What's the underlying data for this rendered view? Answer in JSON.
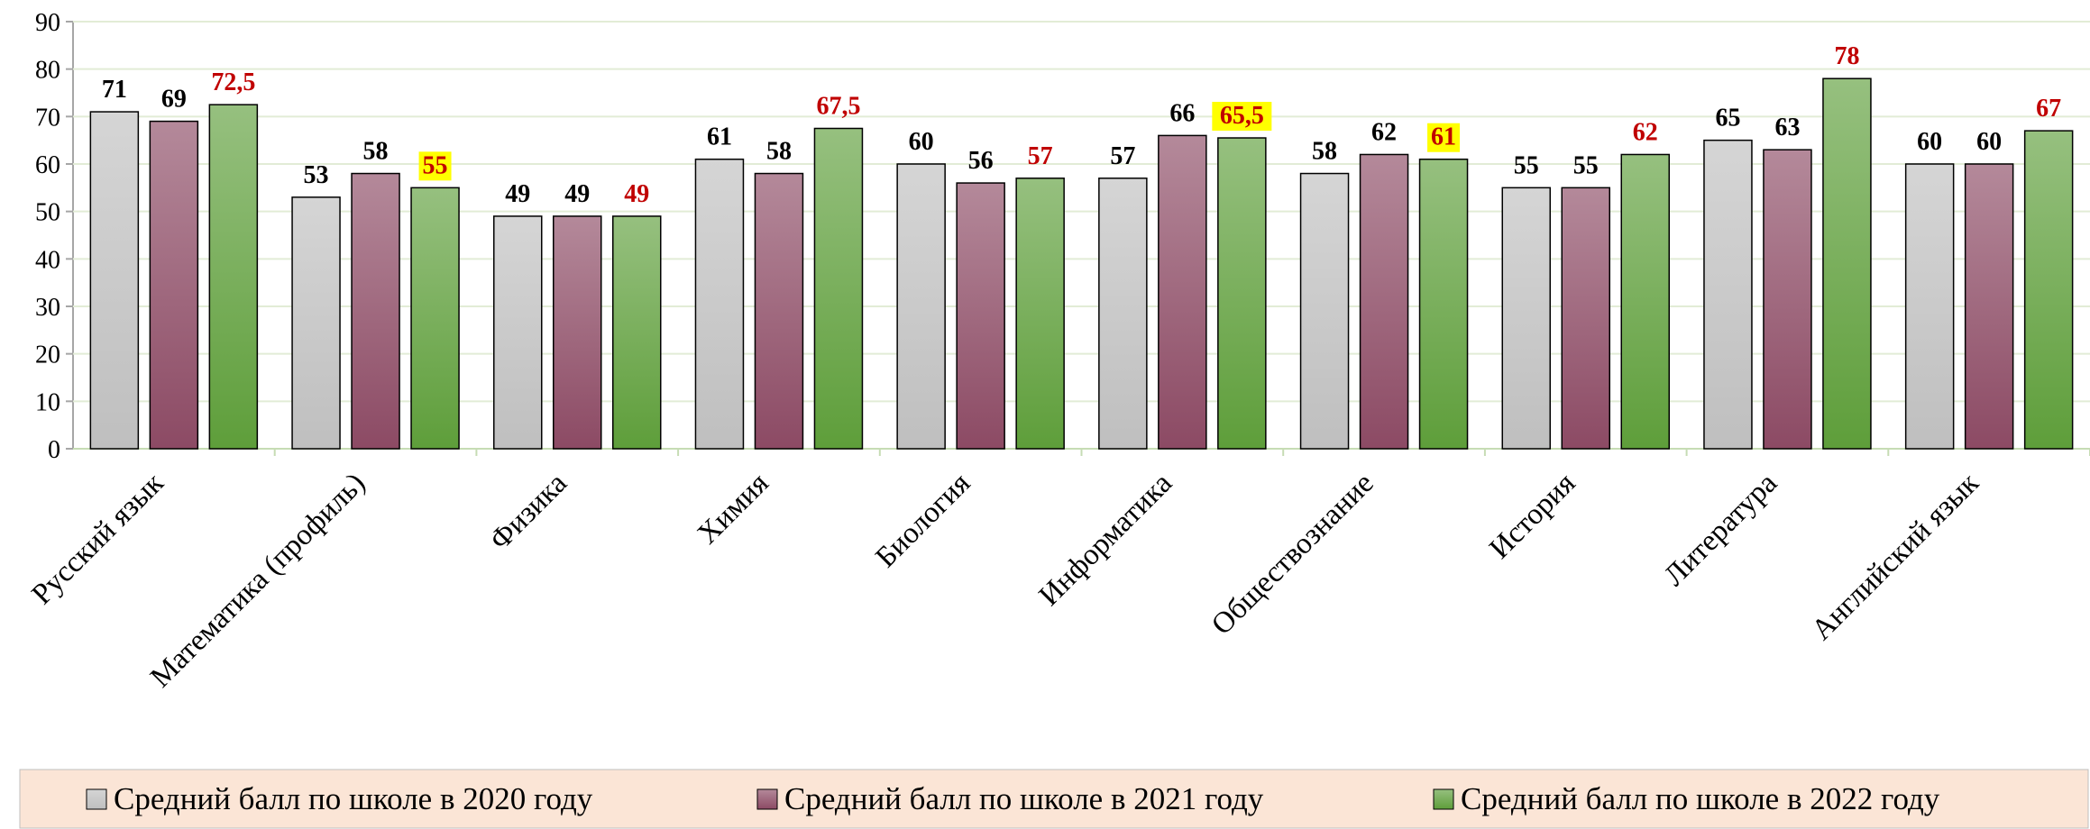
{
  "chart_data": {
    "type": "bar",
    "categories": [
      "Русский язык",
      "Математика (профиль)",
      "Физика",
      "Химия",
      "Биология",
      "Информатика",
      "Обществознание",
      "История",
      "Литература",
      "Английский язык"
    ],
    "series": [
      {
        "name": "Средний балл по школе в 2020 году",
        "color": "#bfbfbf",
        "label_color": "#000000",
        "values": [
          71,
          53,
          49,
          61,
          60,
          57,
          58,
          55,
          65,
          60
        ]
      },
      {
        "name": "Средний балл по школе в 2021 году",
        "color": "#8c4a64",
        "label_color": "#000000",
        "values": [
          69,
          58,
          49,
          58,
          56,
          66,
          62,
          55,
          63,
          60
        ]
      },
      {
        "name": "Средний балл по школе в 2022 году",
        "color": "#5e9e3a",
        "label_color": "#c00000",
        "values": [
          72.5,
          55,
          49,
          67.5,
          57,
          65.5,
          61,
          62,
          78,
          67
        ],
        "value_labels": [
          "72,5",
          "55",
          "49",
          "67,5",
          "57",
          "65,5",
          "61",
          "62",
          "78",
          "67"
        ],
        "label_highlight": [
          false,
          true,
          false,
          false,
          false,
          true,
          true,
          false,
          false,
          false
        ]
      }
    ],
    "ylim": [
      0,
      90
    ],
    "yticks": [
      0,
      10,
      20,
      30,
      40,
      50,
      60,
      70,
      80,
      90
    ],
    "grid": true,
    "legend": "bottom"
  }
}
